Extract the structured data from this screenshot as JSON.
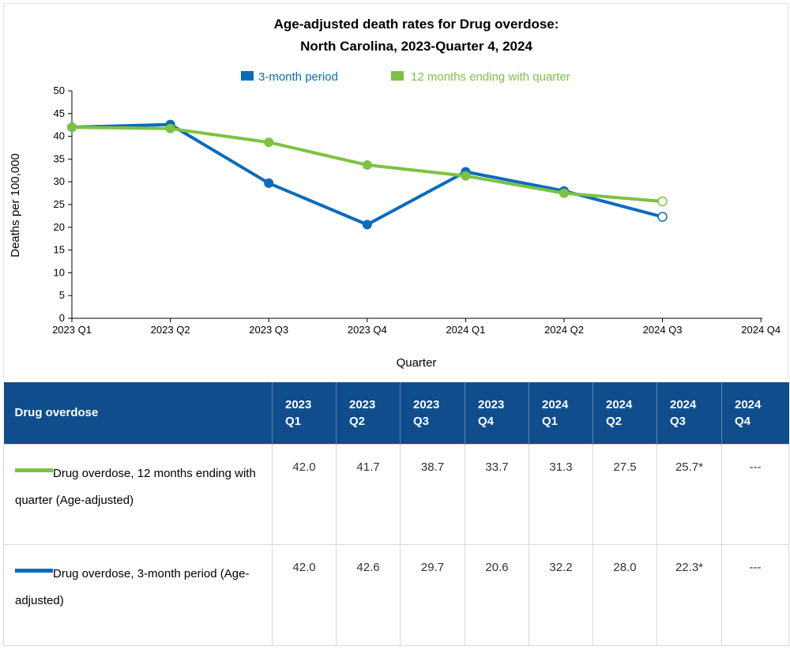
{
  "chart_data": {
    "type": "line",
    "title": "Age-adjusted death rates for Drug overdose:",
    "subtitle": "North Carolina, 2023-Quarter 4, 2024",
    "xlabel": "Quarter",
    "ylabel": "Deaths per 100,000",
    "ylim": [
      0,
      50
    ],
    "yticks": [
      "0",
      "5",
      "10",
      "15",
      "20",
      "25",
      "30",
      "35",
      "40",
      "45",
      "50"
    ],
    "categories": [
      "2023 Q1",
      "2023 Q2",
      "2023 Q3",
      "2023 Q4",
      "2024 Q1",
      "2024 Q2",
      "2024 Q3",
      "2024 Q4"
    ],
    "legend_position": "top",
    "grid": false,
    "series": [
      {
        "name": "3-month period",
        "color": "#0a6bbd",
        "values": [
          42.0,
          42.6,
          29.7,
          20.6,
          32.2,
          28.0,
          22.3,
          null
        ],
        "provisional_index": 6
      },
      {
        "name": "12 months ending with quarter",
        "color": "#7dc242",
        "values": [
          42.0,
          41.7,
          38.7,
          33.7,
          31.3,
          27.5,
          25.7,
          null
        ],
        "provisional_index": 6
      }
    ]
  },
  "table": {
    "header_label": "Drug overdose",
    "columns": [
      {
        "year": "2023",
        "quarter": "Q1"
      },
      {
        "year": "2023",
        "quarter": "Q2"
      },
      {
        "year": "2023",
        "quarter": "Q3"
      },
      {
        "year": "2023",
        "quarter": "Q4"
      },
      {
        "year": "2024",
        "quarter": "Q1"
      },
      {
        "year": "2024",
        "quarter": "Q2"
      },
      {
        "year": "2024",
        "quarter": "Q3"
      },
      {
        "year": "2024",
        "quarter": "Q4"
      }
    ],
    "rows": [
      {
        "label": "Drug overdose, 12 months ending with quarter (Age-adjusted)",
        "color": "#7dc242",
        "values": [
          "42.0",
          "41.7",
          "38.7",
          "33.7",
          "31.3",
          "27.5",
          "25.7*",
          "---"
        ]
      },
      {
        "label": "Drug overdose, 3-month period (Age-adjusted)",
        "color": "#0a6bbd",
        "values": [
          "42.0",
          "42.6",
          "29.7",
          "20.6",
          "32.2",
          "28.0",
          "22.3*",
          "---"
        ]
      }
    ]
  }
}
